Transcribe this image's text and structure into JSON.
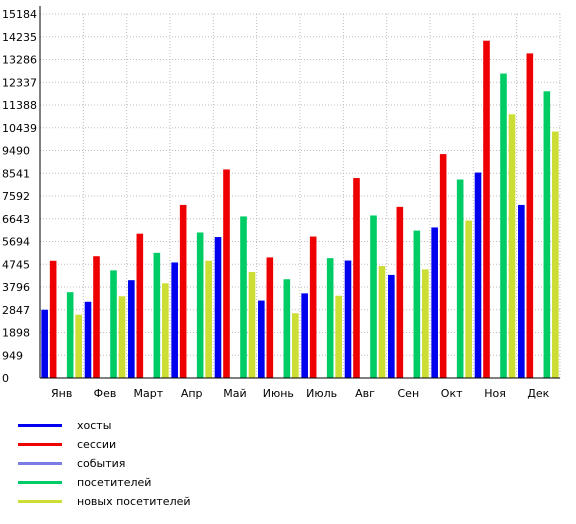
{
  "chart_data": {
    "type": "bar",
    "categories": [
      "Янв",
      "Фев",
      "Март",
      "Апр",
      "Май",
      "Июнь",
      "Июль",
      "Авг",
      "Сен",
      "Окт",
      "Ноя",
      "Дек"
    ],
    "y_ticks": [
      0,
      949,
      1898,
      2847,
      3796,
      4745,
      5694,
      6643,
      7592,
      8541,
      9490,
      10439,
      11388,
      12337,
      13286,
      14235,
      15184
    ],
    "ylim": [
      0,
      15184
    ],
    "grid": true,
    "legend_position": "bottom-left",
    "series": [
      {
        "name": "хосты",
        "color": "#0000ee",
        "values": [
          2847,
          3180,
          4080,
          4820,
          5880,
          3230,
          3530,
          4900,
          4300,
          6280,
          8570,
          7220
        ]
      },
      {
        "name": "сессии",
        "color": "#ee0000",
        "values": [
          4890,
          5080,
          6020,
          7220,
          8700,
          5030,
          5900,
          8340,
          7140,
          9340,
          14070,
          13540
        ]
      },
      {
        "name": "события",
        "color": "#7b7be6",
        "values": [
          0,
          0,
          0,
          0,
          0,
          0,
          0,
          0,
          0,
          0,
          0,
          0
        ]
      },
      {
        "name": "посетителей",
        "color": "#00cc66",
        "values": [
          3580,
          4490,
          5220,
          6070,
          6740,
          4120,
          5000,
          6780,
          6150,
          8280,
          12700,
          11960
        ]
      },
      {
        "name": "новых посетителей",
        "color": "#ccdd33",
        "values": [
          2640,
          3410,
          3950,
          4890,
          4420,
          2700,
          3430,
          4670,
          4530,
          6570,
          11000,
          10280
        ]
      }
    ]
  }
}
